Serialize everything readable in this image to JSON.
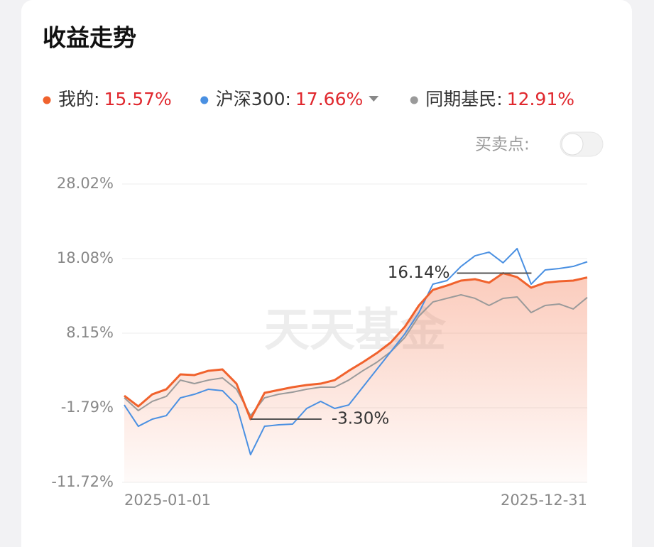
{
  "chart_data": {
    "type": "line",
    "title": "收益走势",
    "series": [
      {
        "name": "我的:",
        "summary_label": "15.57%",
        "color": "#f0622d",
        "values": [
          -0.18,
          -1.6,
          0.01,
          0.68,
          2.66,
          2.57,
          3.14,
          3.32,
          1.43,
          -3.3,
          0.2,
          0.58,
          0.96,
          1.24,
          1.43,
          1.9,
          3.14,
          4.27,
          5.5,
          6.92,
          9.0,
          11.84,
          13.92,
          14.49,
          15.15,
          15.34,
          14.87,
          16.14,
          15.62,
          14.21,
          14.87,
          15.06,
          15.15,
          15.57
        ]
      },
      {
        "name": "沪深300:",
        "summary_label": "17.66%",
        "color": "#4a90e2",
        "values": [
          -1.41,
          -4.25,
          -3.3,
          -2.83,
          -0.46,
          0.01,
          0.68,
          0.49,
          -1.41,
          -8.03,
          -4.25,
          -4.06,
          -3.96,
          -1.88,
          -0.93,
          -1.88,
          -1.41,
          0.96,
          3.32,
          5.69,
          8.06,
          10.89,
          14.68,
          15.15,
          17.04,
          18.46,
          18.94,
          17.52,
          19.41,
          14.68,
          16.57,
          16.76,
          17.04,
          17.66
        ]
      },
      {
        "name": "同期基民:",
        "summary_label": "12.91%",
        "color": "#9a9a9a",
        "values": [
          -0.46,
          -2.16,
          -0.93,
          -0.27,
          1.9,
          1.43,
          1.9,
          2.19,
          0.68,
          -2.83,
          -0.46,
          0.01,
          0.3,
          0.68,
          0.96,
          0.96,
          1.9,
          3.14,
          4.27,
          5.69,
          7.58,
          10.42,
          12.31,
          12.79,
          13.26,
          12.79,
          11.84,
          12.79,
          12.98,
          10.89,
          11.84,
          12.03,
          11.37,
          12.91
        ]
      }
    ],
    "categories": [
      "2025-01-01",
      null,
      null,
      null,
      null,
      null,
      null,
      null,
      null,
      null,
      null,
      null,
      null,
      null,
      null,
      null,
      null,
      null,
      null,
      null,
      null,
      null,
      null,
      null,
      null,
      null,
      null,
      null,
      null,
      null,
      null,
      null,
      null,
      "2025-12-31"
    ],
    "ylim": [
      -11.72,
      28.02
    ],
    "yticks": [
      {
        "value": 28.02,
        "label": "28.02%"
      },
      {
        "value": 18.08,
        "label": "18.08%"
      },
      {
        "value": 8.15,
        "label": "8.15%"
      },
      {
        "value": -1.79,
        "label": "-1.79%"
      },
      {
        "value": -11.72,
        "label": "-11.72%"
      }
    ],
    "grid": true,
    "annotations": [
      {
        "text": "16.14%",
        "series": 0,
        "index": 27,
        "side": "left"
      },
      {
        "text": "-3.30%",
        "series": 0,
        "index": 9,
        "side": "right"
      }
    ],
    "toggle_label": "买卖点:",
    "watermark": "天天基金"
  }
}
